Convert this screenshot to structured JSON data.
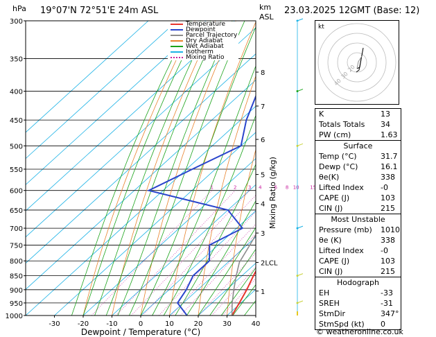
{
  "header": {
    "pressure_unit": "hPa",
    "location": "19°07'N 72°51'E 24m ASL",
    "height_unit": "km",
    "height_unit2": "ASL",
    "valid": "23.03.2025 12GMT (Base: 12)"
  },
  "legend": [
    {
      "label": "Temperature",
      "color": "#e8342c"
    },
    {
      "label": "Dewpoint",
      "color": "#2a45cc"
    },
    {
      "label": "Parcel Trajectory",
      "color": "#8c8c8c"
    },
    {
      "label": "Dry Adiabat",
      "color": "#e8822c"
    },
    {
      "label": "Wet Adiabat",
      "color": "#1aa31a"
    },
    {
      "label": "Isotherm",
      "color": "#1ab2e6"
    },
    {
      "label": "Mixing Ratio",
      "color": "#c81e9e"
    }
  ],
  "chart_data": {
    "type": "line",
    "xlabel": "Dewpoint / Temperature (°C)",
    "ylabel_left": "hPa",
    "ylabel_right": "Mixing Ratio (g/kg)",
    "pressure_levels": [
      300,
      350,
      400,
      450,
      500,
      550,
      600,
      650,
      700,
      750,
      800,
      850,
      900,
      950,
      1000
    ],
    "x_ticks": [
      -30,
      -20,
      -10,
      0,
      10,
      20,
      30,
      40
    ],
    "height_ticks_km": [
      {
        "label": "8",
        "p": 370
      },
      {
        "label": "7",
        "p": 425
      },
      {
        "label": "6",
        "p": 487
      },
      {
        "label": "5",
        "p": 562
      },
      {
        "label": "4",
        "p": 633
      },
      {
        "label": "3",
        "p": 714
      },
      {
        "label": "2LCL",
        "p": 805
      },
      {
        "label": "1",
        "p": 905
      }
    ],
    "mixing_ratio_labels": [
      "1",
      "2",
      "3",
      "4",
      "6",
      "8",
      "10",
      "15",
      "20",
      "25"
    ],
    "series": [
      {
        "name": "Temperature",
        "color": "#e8342c",
        "points": [
          [
            1000,
            31.7
          ],
          [
            950,
            29.5
          ],
          [
            900,
            27
          ],
          [
            850,
            24
          ],
          [
            800,
            21
          ],
          [
            750,
            17
          ],
          [
            700,
            12
          ],
          [
            650,
            7
          ],
          [
            600,
            4
          ],
          [
            550,
            -1
          ],
          [
            500,
            -7
          ],
          [
            450,
            -13
          ],
          [
            400,
            -20
          ],
          [
            370,
            -24
          ],
          [
            350,
            -24
          ],
          [
            300,
            -31
          ]
        ]
      },
      {
        "name": "Dewpoint",
        "color": "#2a45cc",
        "points": [
          [
            1000,
            16.1
          ],
          [
            950,
            8
          ],
          [
            900,
            6
          ],
          [
            850,
            3
          ],
          [
            800,
            3
          ],
          [
            750,
            -3
          ],
          [
            700,
            2
          ],
          [
            650,
            -10
          ],
          [
            600,
            -45
          ],
          [
            550,
            -38
          ],
          [
            500,
            -30
          ],
          [
            450,
            -38
          ],
          [
            400,
            -45
          ],
          [
            350,
            -55
          ],
          [
            300,
            -65
          ]
        ]
      },
      {
        "name": "Parcel Trajectory",
        "color": "#8c8c8c",
        "points": [
          [
            1000,
            31.7
          ],
          [
            950,
            27
          ],
          [
            900,
            22.5
          ],
          [
            850,
            18
          ],
          [
            805,
            14
          ],
          [
            750,
            11
          ],
          [
            700,
            8
          ],
          [
            650,
            4.5
          ],
          [
            600,
            1
          ],
          [
            550,
            -3
          ],
          [
            500,
            -7.5
          ],
          [
            450,
            -13
          ],
          [
            400,
            -19
          ],
          [
            350,
            -26
          ],
          [
            300,
            -34
          ]
        ]
      }
    ]
  },
  "hodograph": {
    "unit_label": "kt",
    "ring_labels": [
      "40",
      "30",
      "20"
    ]
  },
  "indices": {
    "top": [
      {
        "key": "K",
        "value": "13"
      },
      {
        "key": "Totals Totals",
        "value": "34"
      },
      {
        "key": "PW (cm)",
        "value": "1.63"
      }
    ],
    "surface": {
      "title": "Surface",
      "rows": [
        {
          "key": "Temp (°C)",
          "value": "31.7"
        },
        {
          "key": "Dewp (°C)",
          "value": "16.1"
        },
        {
          "key": "θe(K)",
          "value": "338"
        },
        {
          "key": "Lifted Index",
          "value": "-0"
        },
        {
          "key": "CAPE (J)",
          "value": "103"
        },
        {
          "key": "CIN (J)",
          "value": "215"
        }
      ]
    },
    "most_unstable": {
      "title": "Most Unstable",
      "rows": [
        {
          "key": "Pressure (mb)",
          "value": "1010"
        },
        {
          "key": "θe (K)",
          "value": "338"
        },
        {
          "key": "Lifted Index",
          "value": "-0"
        },
        {
          "key": "CAPE (J)",
          "value": "103"
        },
        {
          "key": "CIN (J)",
          "value": "215"
        }
      ]
    },
    "hodograph": {
      "title": "Hodograph",
      "rows": [
        {
          "key": "EH",
          "value": "-33"
        },
        {
          "key": "SREH",
          "value": "-31"
        },
        {
          "key": "StmDir",
          "value": "347°"
        },
        {
          "key": "StmSpd (kt)",
          "value": "0"
        }
      ]
    }
  },
  "footer": {
    "copyright": "© weatheronline.co.uk"
  }
}
